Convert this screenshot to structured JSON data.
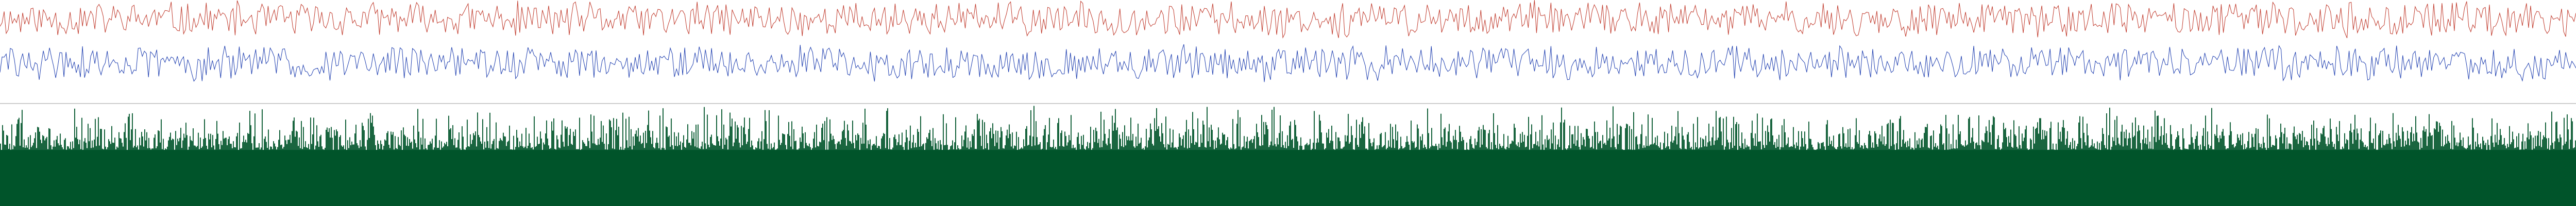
{
  "chart_data": [
    {
      "type": "line",
      "title": "",
      "xlabel": "",
      "ylabel": "",
      "grid": false,
      "legend": "none",
      "sample_count": 1250,
      "series": [
        {
          "color": "#c0392b",
          "mean": 0.78,
          "amplitude": 0.22,
          "seed": 11
        },
        {
          "color": "#1f3fb0",
          "mean": 0.28,
          "amplitude": 0.22,
          "seed": 29
        }
      ]
    },
    {
      "type": "bar",
      "title": "",
      "xlabel": "",
      "ylabel": "",
      "grid": false,
      "legend": "none",
      "bar_count": 2500,
      "color": "#00542a",
      "baseline_fraction": 0.55,
      "max_fraction": 1.0,
      "seed": 47
    }
  ],
  "colors": {
    "background": "#ffffff",
    "divider": "#9a9a9a"
  }
}
